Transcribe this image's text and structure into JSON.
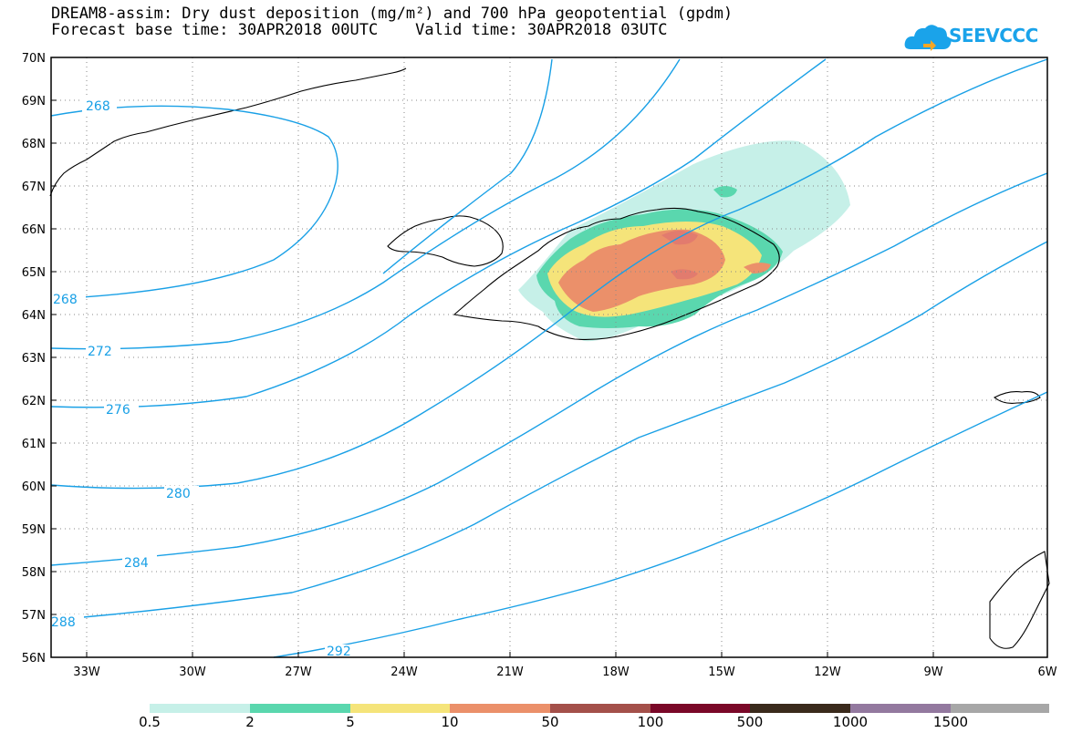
{
  "title": {
    "line1": "DREAM8-assim: Dry dust deposition (mg/m²) and 700 hPa geopotential (gpdm)",
    "line2": "Forecast base time: 30APR2018 00UTC    Valid time: 30APR2018 03UTC"
  },
  "logo": {
    "text": "SEEVCCC",
    "icon": "cloud-logo-icon"
  },
  "map": {
    "lon_range": [
      -34.5,
      -6
    ],
    "lat_range": [
      56,
      70
    ],
    "lat_labels": [
      "70N",
      "69N",
      "68N",
      "67N",
      "66N",
      "65N",
      "64N",
      "63N",
      "62N",
      "61N",
      "60N",
      "59N",
      "58N",
      "57N",
      "56N"
    ],
    "lon_labels": [
      "33W",
      "30W",
      "27W",
      "24W",
      "21W",
      "18W",
      "15W",
      "12W",
      "9W",
      "6W"
    ],
    "contour_labels": [
      "268",
      "268",
      "272",
      "276",
      "280",
      "284",
      "288",
      "292"
    ],
    "contour_color": "#19a0e6",
    "gridlines": "dotted"
  },
  "legend": {
    "colors": [
      "#c6f0e8",
      "#5ad7ae",
      "#f5e47a",
      "#eb906a",
      "#a4504a",
      "#7a0828",
      "#3a2a1c",
      "#93799f",
      "#a7a7a7"
    ],
    "labels": [
      "0.5",
      "2",
      "5",
      "10",
      "50",
      "100",
      "500",
      "1000",
      "1500"
    ]
  }
}
